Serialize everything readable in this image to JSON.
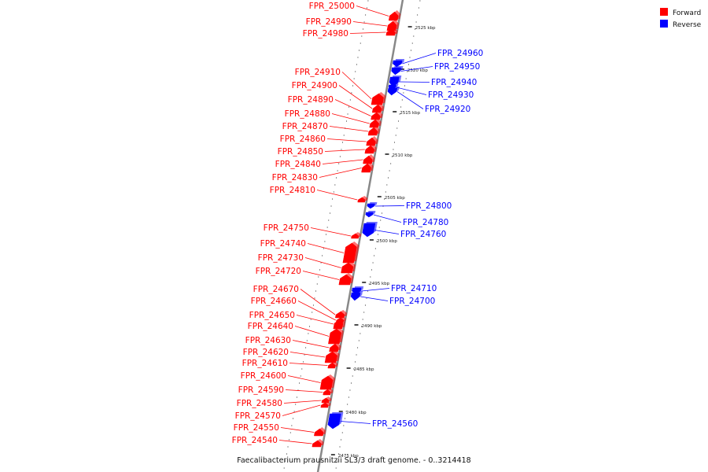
{
  "colors": {
    "forward": "#ff0000",
    "reverse": "#0000ff",
    "backbone": "#888888"
  },
  "legend": [
    {
      "label": "Forward",
      "color": "#ff0000"
    },
    {
      "label": "Reverse",
      "color": "#0000ff"
    }
  ],
  "caption": "Faecalibacterium prausnitzii SL3/3 draft genome. - 0..3214418",
  "ticks": [
    "2525 kbp",
    "2520 kbp",
    "2515 kbp",
    "2510 kbp",
    "2505 kbp",
    "2500 kbp",
    "2495 kbp",
    "2490 kbp",
    "2485 kbp",
    "2480 kbp",
    "2475 kbp"
  ],
  "genes": [
    {
      "label": "FPR_25000",
      "strand": "forward"
    },
    {
      "label": "FPR_24990",
      "strand": "forward"
    },
    {
      "label": "FPR_24980",
      "strand": "forward"
    },
    {
      "label": "FPR_24960",
      "strand": "reverse"
    },
    {
      "label": "FPR_24950",
      "strand": "reverse"
    },
    {
      "label": "FPR_24940",
      "strand": "reverse"
    },
    {
      "label": "FPR_24930",
      "strand": "reverse"
    },
    {
      "label": "FPR_24920",
      "strand": "reverse"
    },
    {
      "label": "FPR_24910",
      "strand": "forward"
    },
    {
      "label": "FPR_24900",
      "strand": "forward"
    },
    {
      "label": "FPR_24890",
      "strand": "forward"
    },
    {
      "label": "FPR_24880",
      "strand": "forward"
    },
    {
      "label": "FPR_24870",
      "strand": "forward"
    },
    {
      "label": "FPR_24860",
      "strand": "forward"
    },
    {
      "label": "FPR_24850",
      "strand": "forward"
    },
    {
      "label": "FPR_24840",
      "strand": "forward"
    },
    {
      "label": "FPR_24830",
      "strand": "forward"
    },
    {
      "label": "FPR_24810",
      "strand": "forward"
    },
    {
      "label": "FPR_24800",
      "strand": "reverse"
    },
    {
      "label": "FPR_24780",
      "strand": "reverse"
    },
    {
      "label": "FPR_24760",
      "strand": "reverse"
    },
    {
      "label": "FPR_24750",
      "strand": "forward"
    },
    {
      "label": "FPR_24740",
      "strand": "forward"
    },
    {
      "label": "FPR_24730",
      "strand": "forward"
    },
    {
      "label": "FPR_24720",
      "strand": "forward"
    },
    {
      "label": "FPR_24710",
      "strand": "reverse"
    },
    {
      "label": "FPR_24700",
      "strand": "reverse"
    },
    {
      "label": "FPR_24670",
      "strand": "forward"
    },
    {
      "label": "FPR_24660",
      "strand": "forward"
    },
    {
      "label": "FPR_24650",
      "strand": "forward"
    },
    {
      "label": "FPR_24640",
      "strand": "forward"
    },
    {
      "label": "FPR_24630",
      "strand": "forward"
    },
    {
      "label": "FPR_24620",
      "strand": "forward"
    },
    {
      "label": "FPR_24610",
      "strand": "forward"
    },
    {
      "label": "FPR_24600",
      "strand": "forward"
    },
    {
      "label": "FPR_24590",
      "strand": "forward"
    },
    {
      "label": "FPR_24580",
      "strand": "forward"
    },
    {
      "label": "FPR_24570",
      "strand": "forward"
    },
    {
      "label": "FPR_24560",
      "strand": "reverse"
    },
    {
      "label": "FPR_24550",
      "strand": "forward"
    },
    {
      "label": "FPR_24540",
      "strand": "forward"
    }
  ]
}
